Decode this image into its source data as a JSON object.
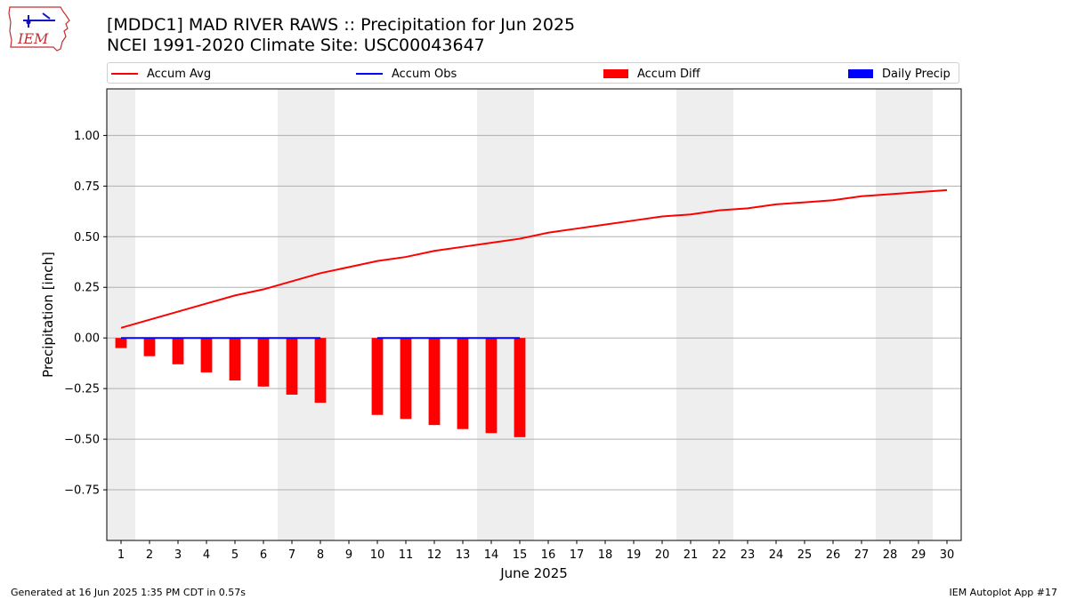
{
  "header": {
    "title": "[MDDC1] MAD RIVER RAWS :: Precipitation for Jun 2025",
    "subtitle": "NCEI 1991-2020 Climate Site: USC00043647"
  },
  "logo": {
    "text": "IEM",
    "icon": "iowa-state-outline-logo"
  },
  "footer": {
    "left": "Generated at 16 Jun 2025 1:35 PM CDT in 0.57s",
    "right": "IEM Autoplot App #17"
  },
  "chart_data": {
    "type": "bar",
    "xlabel": "June 2025",
    "ylabel": "Precipitation [inch]",
    "x": [
      1,
      2,
      3,
      4,
      5,
      6,
      7,
      8,
      9,
      10,
      11,
      12,
      13,
      14,
      15,
      16,
      17,
      18,
      19,
      20,
      21,
      22,
      23,
      24,
      25,
      26,
      27,
      28,
      29,
      30
    ],
    "xlim": [
      0.5,
      30.5
    ],
    "ylim": [
      -1.0,
      1.23
    ],
    "yticks": [
      -0.75,
      -0.5,
      -0.25,
      0.0,
      0.25,
      0.5,
      0.75,
      1.0
    ],
    "ytick_labels": [
      "−0.75",
      "−0.50",
      "−0.25",
      "0.00",
      "0.25",
      "0.50",
      "0.75",
      "1.00"
    ],
    "grid": "horizontal",
    "legend": "top",
    "weekend_shading": [
      [
        0.5,
        1.5
      ],
      [
        6.5,
        8.5
      ],
      [
        13.5,
        15.5
      ],
      [
        20.5,
        22.5
      ],
      [
        27.5,
        29.5
      ]
    ],
    "weekend_color": "#eeeeee",
    "series": [
      {
        "name": "Accum Avg",
        "kind": "line",
        "color": "#ff0000",
        "x": [
          1,
          2,
          3,
          4,
          5,
          6,
          7,
          8,
          9,
          10,
          11,
          12,
          13,
          14,
          15,
          16,
          17,
          18,
          19,
          20,
          21,
          22,
          23,
          24,
          25,
          26,
          27,
          28,
          29,
          30
        ],
        "values": [
          0.05,
          0.09,
          0.13,
          0.17,
          0.21,
          0.24,
          0.28,
          0.32,
          0.35,
          0.38,
          0.4,
          0.43,
          0.45,
          0.47,
          0.49,
          0.52,
          0.54,
          0.56,
          0.58,
          0.6,
          0.61,
          0.63,
          0.64,
          0.66,
          0.67,
          0.68,
          0.7,
          0.71,
          0.72,
          0.73
        ]
      },
      {
        "name": "Accum Obs",
        "kind": "line",
        "color": "#0000ff",
        "segments": [
          {
            "x": [
              1,
              2,
              3,
              4,
              5,
              6,
              7,
              8
            ],
            "values": [
              0,
              0,
              0,
              0,
              0,
              0,
              0,
              0
            ]
          },
          {
            "x": [
              10,
              11,
              12,
              13,
              14,
              15
            ],
            "values": [
              0,
              0,
              0,
              0,
              0,
              0
            ]
          }
        ]
      },
      {
        "name": "Accum Diff",
        "kind": "bar",
        "color": "#ff0000",
        "x": [
          1,
          2,
          3,
          4,
          5,
          6,
          7,
          8,
          10,
          11,
          12,
          13,
          14,
          15
        ],
        "values": [
          -0.05,
          -0.09,
          -0.13,
          -0.17,
          -0.21,
          -0.24,
          -0.28,
          -0.32,
          -0.38,
          -0.4,
          -0.43,
          -0.45,
          -0.47,
          -0.49
        ]
      },
      {
        "name": "Daily Precip",
        "kind": "bar",
        "color": "#0000ff",
        "x": [],
        "values": []
      }
    ]
  }
}
